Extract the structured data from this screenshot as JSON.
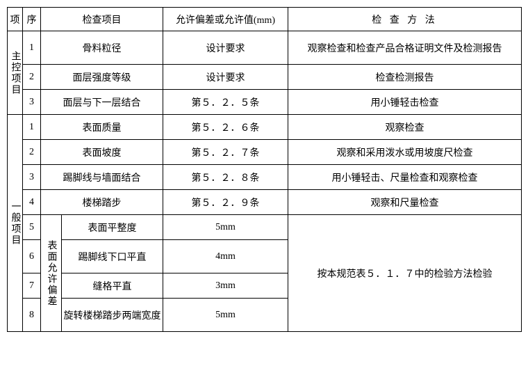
{
  "table": {
    "headers": {
      "col1": "项",
      "col2": "序",
      "col3": "检查项目",
      "col4": "允许偏差或允许值(mm)",
      "col5": "检 查 方 法"
    },
    "group1": {
      "label": "主控项目",
      "rows": [
        {
          "seq": "1",
          "item": "骨料粒径",
          "tol": "设计要求",
          "method": "观察检查和检查产品合格证明文件及检测报告"
        },
        {
          "seq": "2",
          "item": "面层强度等级",
          "tol": "设计要求",
          "method": "检查检测报告"
        },
        {
          "seq": "3",
          "item": "面层与下一层结合",
          "tol": "第５．２．５条",
          "method": "用小锤轻击检查"
        }
      ]
    },
    "group2": {
      "label": "一般项目",
      "rows": [
        {
          "seq": "1",
          "item": "表面质量",
          "tol": "第５．２．６条",
          "method": "观察检查"
        },
        {
          "seq": "2",
          "item": "表面坡度",
          "tol": "第５．２．７条",
          "method": "观察和采用泼水或用坡度尺检查"
        },
        {
          "seq": "3",
          "item": "踢脚线与墙面结合",
          "tol": "第５．２．８条",
          "method": "用小锤轻击、尺量检查和观察检查"
        },
        {
          "seq": "4",
          "item": "楼梯踏步",
          "tol": "第５．２．９条",
          "method": "观察和尺量检查"
        }
      ],
      "subLabel": "表面允许偏差",
      "subRows": [
        {
          "seq": "5",
          "item": "表面平整度",
          "tol": "5mm"
        },
        {
          "seq": "6",
          "item": "踢脚线下口平直",
          "tol": "4mm"
        },
        {
          "seq": "7",
          "item": "缝格平直",
          "tol": "3mm"
        },
        {
          "seq": "8",
          "item": "旋转楼梯踏步两端宽度",
          "tol": "5mm"
        }
      ],
      "subMethod": "按本规范表５．１．７中的检验方法检验"
    },
    "style": {
      "border_color": "#000000",
      "background_color": "#ffffff",
      "font_family": "SimSun",
      "font_size_pt": 14
    }
  }
}
